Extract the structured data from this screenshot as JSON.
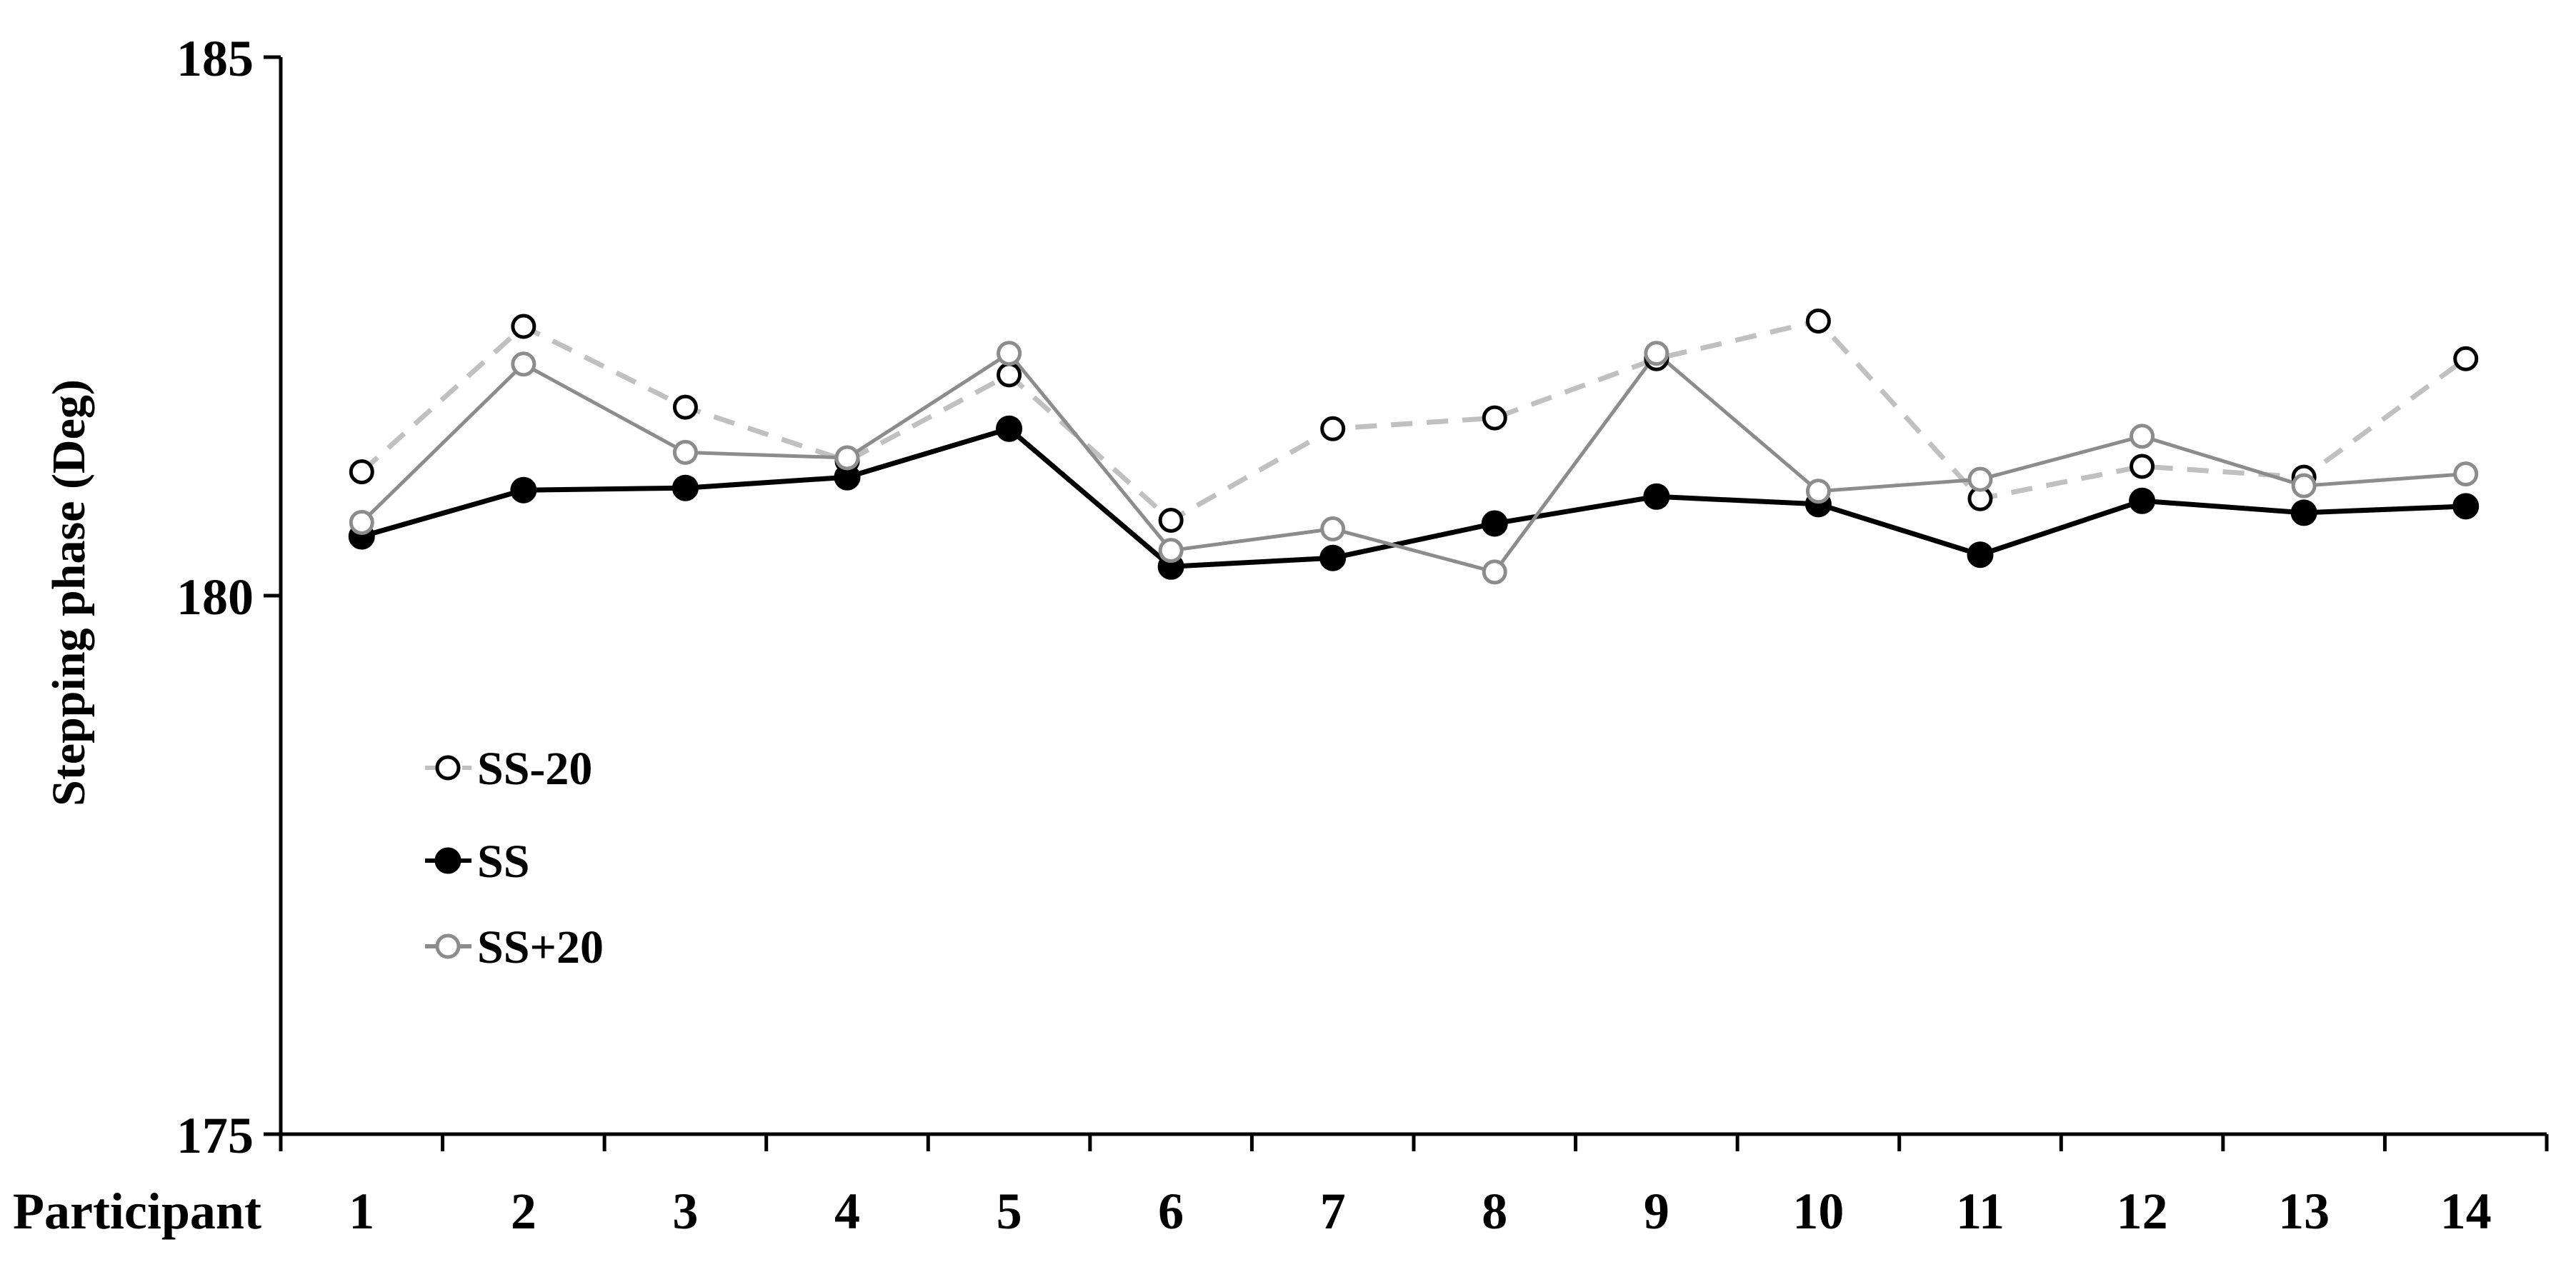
{
  "chart_data": {
    "type": "line",
    "ylabel": "Stepping phase (Deg)",
    "xlabel": "Participant",
    "ylim": [
      175,
      185
    ],
    "yticks": [
      175,
      180,
      185
    ],
    "categories": [
      "1",
      "2",
      "3",
      "4",
      "5",
      "6",
      "7",
      "8",
      "9",
      "10",
      "11",
      "12",
      "13",
      "14"
    ],
    "grid": false,
    "legend_position": "left-center",
    "series": [
      {
        "name": "SS-20",
        "color": "#000000",
        "line_color": "#c0c0c0",
        "line_style": "dashed",
        "marker": "open-circle",
        "values": [
          181.15,
          182.5,
          181.75,
          181.25,
          182.05,
          180.7,
          181.55,
          181.65,
          182.2,
          182.55,
          180.9,
          181.2,
          181.1,
          182.2
        ]
      },
      {
        "name": "SS",
        "color": "#000000",
        "line_color": "#000000",
        "line_style": "solid",
        "marker": "filled-circle",
        "values": [
          180.55,
          180.98,
          181.0,
          181.1,
          181.55,
          180.27,
          180.35,
          180.67,
          180.92,
          180.85,
          180.38,
          180.88,
          180.77,
          180.83
        ]
      },
      {
        "name": "SS+20",
        "color": "#8c8c8c",
        "line_color": "#8c8c8c",
        "line_style": "solid",
        "marker": "open-circle",
        "values": [
          180.68,
          182.15,
          181.33,
          181.28,
          182.25,
          180.42,
          180.62,
          180.22,
          182.25,
          180.97,
          181.08,
          181.48,
          181.02,
          181.13
        ]
      }
    ]
  }
}
